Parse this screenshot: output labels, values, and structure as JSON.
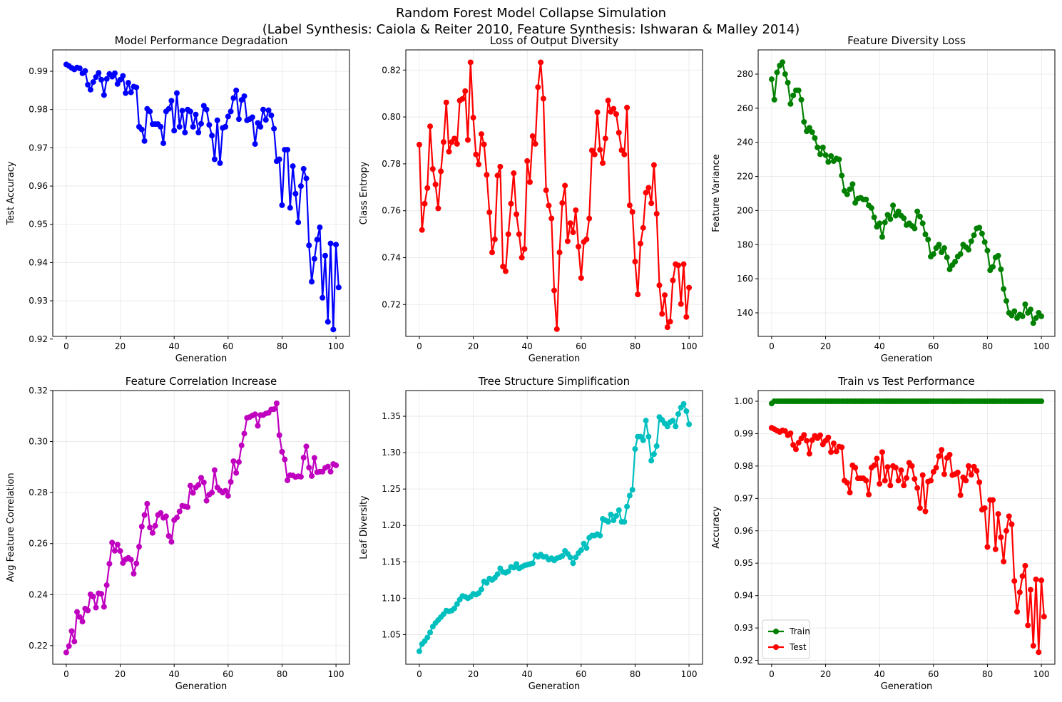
{
  "figure": {
    "suptitle_line1": "Random Forest Model Collapse Simulation",
    "suptitle_line2": "(Label Synthesis: Caiola & Reiter 2010, Feature Synthesis: Ishwaran & Malley 2014)"
  },
  "chart_data": [
    {
      "type": "line",
      "title": "Model Performance Degradation",
      "xlabel": "Generation",
      "ylabel": "Test Accuracy",
      "xlim": [
        -5,
        105
      ],
      "ylim": [
        0.9207,
        0.9956
      ],
      "xticks": [
        0,
        20,
        40,
        60,
        80,
        100
      ],
      "yticks": [
        0.92,
        0.93,
        0.94,
        0.95,
        0.96,
        0.97,
        0.98,
        0.99
      ],
      "grid": true,
      "legend": null,
      "series": [
        {
          "color": "#0000ff",
          "x_start": 0,
          "x_step": 1,
          "values": [
            0.9918,
            0.9914,
            0.9909,
            0.9905,
            0.991,
            0.9908,
            0.9895,
            0.9901,
            0.9865,
            0.9852,
            0.9872,
            0.9885,
            0.9896,
            0.9878,
            0.9838,
            0.988,
            0.9893,
            0.9886,
            0.9895,
            0.9867,
            0.9878,
            0.9888,
            0.9843,
            0.987,
            0.9845,
            0.986,
            0.9858,
            0.9755,
            0.9748,
            0.9718,
            0.9802,
            0.9795,
            0.9762,
            0.9762,
            0.9762,
            0.9755,
            0.9712,
            0.9795,
            0.9802,
            0.9823,
            0.9745,
            0.9843,
            0.9755,
            0.9797,
            0.974,
            0.98,
            0.9795,
            0.9755,
            0.9787,
            0.974,
            0.9763,
            0.981,
            0.98,
            0.976,
            0.9732,
            0.967,
            0.9772,
            0.966,
            0.9752,
            0.9755,
            0.9782,
            0.9795,
            0.983,
            0.985,
            0.9775,
            0.9825,
            0.9835,
            0.9772,
            0.9775,
            0.978,
            0.971,
            0.9765,
            0.9755,
            0.98,
            0.9773,
            0.9798,
            0.9785,
            0.975,
            0.9665,
            0.967,
            0.955,
            0.9695,
            0.9695,
            0.9543,
            0.9652,
            0.958,
            0.9505,
            0.96,
            0.9645,
            0.962,
            0.9445,
            0.935,
            0.941,
            0.946,
            0.9492,
            0.9308,
            0.9418,
            0.9245,
            0.945,
            0.9225,
            0.9447,
            0.9335
          ]
        }
      ]
    },
    {
      "type": "line",
      "title": "Loss of Output Diversity",
      "xlabel": "Generation",
      "ylabel": "Class Entropy",
      "xlim": [
        -5,
        105
      ],
      "ylim": [
        0.7064,
        0.8286
      ],
      "xticks": [
        0,
        20,
        40,
        60,
        80,
        100
      ],
      "yticks": [
        0.72,
        0.74,
        0.76,
        0.78,
        0.8,
        0.82
      ],
      "grid": true,
      "legend": null,
      "series": [
        {
          "color": "#ff0000",
          "x_start": 0,
          "x_step": 1,
          "values": [
            0.7882,
            0.7518,
            0.763,
            0.7697,
            0.796,
            0.7778,
            0.7712,
            0.761,
            0.7768,
            0.7893,
            0.8062,
            0.7852,
            0.7893,
            0.7908,
            0.7885,
            0.807,
            0.8077,
            0.811,
            0.7902,
            0.8233,
            0.7997,
            0.784,
            0.7798,
            0.7927,
            0.7883,
            0.7753,
            0.7593,
            0.7422,
            0.7478,
            0.775,
            0.7788,
            0.7362,
            0.7342,
            0.75,
            0.763,
            0.776,
            0.7585,
            0.75,
            0.74,
            0.7437,
            0.7812,
            0.7722,
            0.7918,
            0.7885,
            0.8127,
            0.8233,
            0.8078,
            0.7687,
            0.7622,
            0.7567,
            0.726,
            0.7095,
            0.7422,
            0.7633,
            0.7707,
            0.747,
            0.7547,
            0.7508,
            0.7602,
            0.7447,
            0.7313,
            0.7467,
            0.7478,
            0.7567,
            0.7857,
            0.784,
            0.802,
            0.786,
            0.7803,
            0.7908,
            0.807,
            0.8022,
            0.8035,
            0.8012,
            0.7933,
            0.7858,
            0.784,
            0.804,
            0.7623,
            0.7595,
            0.7383,
            0.7243,
            0.746,
            0.7527,
            0.7677,
            0.7698,
            0.7632,
            0.7795,
            0.7587,
            0.7282,
            0.716,
            0.724,
            0.7103,
            0.7127,
            0.7303,
            0.7372,
            0.7367,
            0.7202,
            0.7372,
            0.7147,
            0.7272
          ]
        }
      ]
    },
    {
      "type": "line",
      "title": "Feature Diversity Loss",
      "xlabel": "Generation",
      "ylabel": "Feature Variance",
      "xlim": [
        -5,
        105
      ],
      "ylim": [
        126.2,
        294.2
      ],
      "xticks": [
        0,
        20,
        40,
        60,
        80,
        100
      ],
      "yticks": [
        140,
        160,
        180,
        200,
        220,
        240,
        260,
        280
      ],
      "grid": true,
      "legend": null,
      "series": [
        {
          "color": "#008000",
          "x_start": 0,
          "x_step": 1,
          "values": [
            277.0,
            265.0,
            281.0,
            285.0,
            287.0,
            280.0,
            275.0,
            262.5,
            267.5,
            270.5,
            270.5,
            265.0,
            252.0,
            246.5,
            248.5,
            246.0,
            242.5,
            237.0,
            233.0,
            237.0,
            232.5,
            228.5,
            232.0,
            229.0,
            230.5,
            230.0,
            220.5,
            211.5,
            209.5,
            212.5,
            215.5,
            204.5,
            207.0,
            207.5,
            206.5,
            206.5,
            203.0,
            201.5,
            196.0,
            190.5,
            192.5,
            184.5,
            193.0,
            197.5,
            195.0,
            203.0,
            197.0,
            199.5,
            197.0,
            195.5,
            191.5,
            192.5,
            191.0,
            189.5,
            199.5,
            196.5,
            192.5,
            186.0,
            183.0,
            173.0,
            174.5,
            178.0,
            180.0,
            175.5,
            178.0,
            172.5,
            165.5,
            168.0,
            170.0,
            173.0,
            174.5,
            180.0,
            178.5,
            177.0,
            182.0,
            185.5,
            189.5,
            190.0,
            186.5,
            181.5,
            176.5,
            165.0,
            167.0,
            172.5,
            173.5,
            165.5,
            154.0,
            147.0,
            140.0,
            138.5,
            141.0,
            137.0,
            139.0,
            138.0,
            145.0,
            140.0,
            142.0,
            134.0,
            137.0,
            140.0,
            138.0
          ]
        }
      ]
    },
    {
      "type": "line",
      "title": "Feature Correlation Increase",
      "xlabel": "Generation",
      "ylabel": "Avg Feature Correlation",
      "xlim": [
        -5,
        105
      ],
      "ylim": [
        0.2127,
        0.32
      ],
      "xticks": [
        0,
        20,
        40,
        60,
        80,
        100
      ],
      "yticks": [
        0.22,
        0.24,
        0.26,
        0.28,
        0.3,
        0.32
      ],
      "grid": true,
      "legend": null,
      "series": [
        {
          "color": "#bf00bf",
          "x_start": 0,
          "x_step": 1,
          "values": [
            0.2173,
            0.2198,
            0.2257,
            0.2216,
            0.2332,
            0.2312,
            0.2294,
            0.2345,
            0.2338,
            0.2401,
            0.2392,
            0.2349,
            0.2405,
            0.2403,
            0.2352,
            0.2437,
            0.2521,
            0.2604,
            0.2572,
            0.2596,
            0.2571,
            0.2524,
            0.2538,
            0.2544,
            0.2537,
            0.2482,
            0.2522,
            0.2588,
            0.2667,
            0.2712,
            0.2756,
            0.2663,
            0.2642,
            0.267,
            0.2712,
            0.272,
            0.2701,
            0.2707,
            0.263,
            0.2607,
            0.2692,
            0.2702,
            0.2726,
            0.2748,
            0.2746,
            0.2743,
            0.2827,
            0.2799,
            0.282,
            0.283,
            0.2858,
            0.284,
            0.2768,
            0.2792,
            0.28,
            0.2888,
            0.282,
            0.2808,
            0.28,
            0.2807,
            0.2787,
            0.2842,
            0.2923,
            0.2877,
            0.292,
            0.2985,
            0.3031,
            0.3093,
            0.3096,
            0.3102,
            0.3107,
            0.3062,
            0.3104,
            0.3104,
            0.311,
            0.3113,
            0.3126,
            0.3127,
            0.315,
            0.3025,
            0.296,
            0.293,
            0.2848,
            0.2868,
            0.2867,
            0.2861,
            0.2864,
            0.2862,
            0.2937,
            0.2981,
            0.2898,
            0.2865,
            0.2936,
            0.288,
            0.2882,
            0.2882,
            0.2897,
            0.2902,
            0.2882,
            0.2912,
            0.2907
          ]
        }
      ]
    },
    {
      "type": "line",
      "title": "Tree Structure Simplification",
      "xlabel": "Generation",
      "ylabel": "Leaf Diversity",
      "xlim": [
        -5,
        105
      ],
      "ylim": [
        1.0093,
        1.3853
      ],
      "xticks": [
        0,
        20,
        40,
        60,
        80,
        100
      ],
      "yticks": [
        1.05,
        1.1,
        1.15,
        1.2,
        1.25,
        1.3,
        1.35
      ],
      "grid": true,
      "legend": null,
      "series": [
        {
          "color": "#00bfbf",
          "x_start": 0,
          "x_step": 1,
          "values": [
            1.027,
            1.037,
            1.041,
            1.046,
            1.053,
            1.061,
            1.066,
            1.07,
            1.074,
            1.078,
            1.083,
            1.082,
            1.083,
            1.086,
            1.092,
            1.098,
            1.103,
            1.102,
            1.1,
            1.102,
            1.106,
            1.105,
            1.107,
            1.112,
            1.123,
            1.121,
            1.127,
            1.125,
            1.128,
            1.133,
            1.141,
            1.136,
            1.135,
            1.137,
            1.143,
            1.142,
            1.147,
            1.141,
            1.143,
            1.145,
            1.146,
            1.147,
            1.148,
            1.159,
            1.157,
            1.16,
            1.157,
            1.157,
            1.153,
            1.155,
            1.152,
            1.155,
            1.156,
            1.158,
            1.165,
            1.161,
            1.156,
            1.148,
            1.156,
            1.162,
            1.166,
            1.175,
            1.169,
            1.183,
            1.186,
            1.186,
            1.188,
            1.186,
            1.209,
            1.207,
            1.205,
            1.215,
            1.207,
            1.213,
            1.221,
            1.205,
            1.205,
            1.226,
            1.241,
            1.249,
            1.305,
            1.322,
            1.322,
            1.317,
            1.344,
            1.322,
            1.289,
            1.298,
            1.309,
            1.349,
            1.345,
            1.34,
            1.336,
            1.342,
            1.344,
            1.336,
            1.353,
            1.362,
            1.367,
            1.357,
            1.339
          ]
        }
      ]
    },
    {
      "type": "line",
      "title": "Train vs Test Performance",
      "xlabel": "Generation",
      "ylabel": "Accuracy",
      "xlim": [
        -5,
        105
      ],
      "ylim": [
        0.9188,
        1.0033
      ],
      "xticks": [
        0,
        20,
        40,
        60,
        80,
        100
      ],
      "yticks": [
        0.92,
        0.93,
        0.94,
        0.95,
        0.96,
        0.97,
        0.98,
        0.99,
        1.0
      ],
      "grid": true,
      "legend": "lower left",
      "series": [
        {
          "name": "Train",
          "color": "#008000",
          "x_start": 0,
          "x_step": 1,
          "values": [
            0.9993,
            1.0,
            1.0,
            1.0,
            1.0,
            1.0,
            1.0,
            1.0,
            1.0,
            1.0,
            1.0,
            1.0,
            1.0,
            1.0,
            1.0,
            1.0,
            1.0,
            1.0,
            1.0,
            1.0,
            1.0,
            1.0,
            1.0,
            1.0,
            1.0,
            1.0,
            1.0,
            1.0,
            1.0,
            1.0,
            1.0,
            1.0,
            1.0,
            1.0,
            1.0,
            1.0,
            1.0,
            1.0,
            1.0,
            1.0,
            1.0,
            1.0,
            1.0,
            1.0,
            1.0,
            1.0,
            1.0,
            1.0,
            1.0,
            1.0,
            1.0,
            1.0,
            1.0,
            1.0,
            1.0,
            1.0,
            1.0,
            1.0,
            1.0,
            1.0,
            1.0,
            1.0,
            1.0,
            1.0,
            1.0,
            1.0,
            1.0,
            1.0,
            1.0,
            1.0,
            1.0,
            1.0,
            1.0,
            1.0,
            1.0,
            1.0,
            1.0,
            1.0,
            1.0,
            1.0,
            1.0,
            1.0,
            1.0,
            1.0,
            1.0,
            1.0,
            1.0,
            1.0,
            1.0,
            1.0,
            1.0,
            1.0,
            1.0,
            1.0,
            1.0,
            1.0,
            1.0,
            1.0,
            1.0,
            1.0,
            1.0
          ]
        },
        {
          "name": "Test",
          "color": "#ff0000",
          "x_start": 0,
          "x_step": 1,
          "values": [
            0.9918,
            0.9914,
            0.9909,
            0.9905,
            0.991,
            0.9908,
            0.9895,
            0.9901,
            0.9865,
            0.9852,
            0.9872,
            0.9885,
            0.9896,
            0.9878,
            0.9838,
            0.988,
            0.9893,
            0.9886,
            0.9895,
            0.9867,
            0.9878,
            0.9888,
            0.9843,
            0.987,
            0.9845,
            0.986,
            0.9858,
            0.9755,
            0.9748,
            0.9718,
            0.9802,
            0.9795,
            0.9762,
            0.9762,
            0.9762,
            0.9755,
            0.9712,
            0.9795,
            0.9802,
            0.9823,
            0.9745,
            0.9843,
            0.9755,
            0.9797,
            0.974,
            0.98,
            0.9795,
            0.9755,
            0.9787,
            0.974,
            0.9763,
            0.981,
            0.98,
            0.976,
            0.9732,
            0.967,
            0.9772,
            0.966,
            0.9752,
            0.9755,
            0.9782,
            0.9795,
            0.983,
            0.985,
            0.9775,
            0.9825,
            0.9835,
            0.9772,
            0.9775,
            0.978,
            0.971,
            0.9765,
            0.9755,
            0.98,
            0.9773,
            0.9798,
            0.9785,
            0.975,
            0.9665,
            0.967,
            0.955,
            0.9695,
            0.9695,
            0.9543,
            0.9652,
            0.958,
            0.9505,
            0.96,
            0.9645,
            0.962,
            0.9445,
            0.935,
            0.941,
            0.946,
            0.9492,
            0.9308,
            0.9418,
            0.9245,
            0.945,
            0.9225,
            0.9447,
            0.9335
          ]
        }
      ]
    }
  ]
}
